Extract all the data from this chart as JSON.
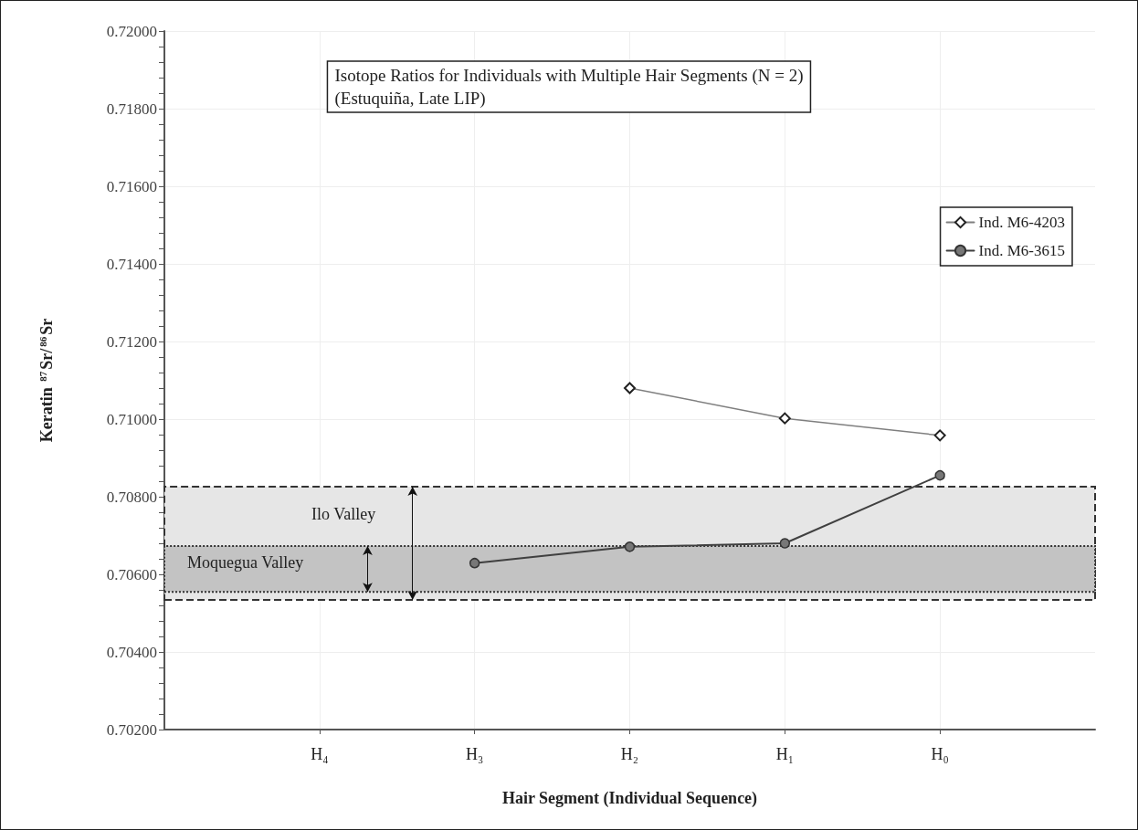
{
  "chart_data": {
    "type": "line",
    "title": "Isotope Ratios for Individuals with Multiple Hair Segments (N = 2)",
    "subtitle": "(Estuquiña, Late LIP)",
    "xlabel": "Hair Segment (Individual Sequence)",
    "ylabel": "Keratin $^{87}$Sr/$^{86}$Sr",
    "categories": [
      null,
      "H₄",
      "H₃",
      "H₂",
      "H₁",
      "H₀",
      null
    ],
    "series": [
      {
        "name": "Ind. M6-4203",
        "color": "#7f7f7f",
        "marker": "diamond",
        "values": [
          null,
          null,
          null,
          0.7108,
          0.71002,
          0.70958,
          null
        ]
      },
      {
        "name": "Ind. M6-3615",
        "color": "#404040",
        "marker": "circle",
        "values": [
          null,
          null,
          0.70629,
          0.70671,
          0.7068,
          0.70855,
          null
        ]
      }
    ],
    "ylim": [
      0.702,
      0.72
    ],
    "yticks": [
      {
        "value": 0.702,
        "label": "0.70200"
      },
      {
        "value": 0.7024,
        "label": null
      },
      {
        "value": 0.7028,
        "label": null
      },
      {
        "value": 0.7032,
        "label": null
      },
      {
        "value": 0.7036,
        "label": null
      },
      {
        "value": 0.704,
        "label": "0.70400"
      },
      {
        "value": 0.7044,
        "label": null
      },
      {
        "value": 0.7048,
        "label": null
      },
      {
        "value": 0.7052,
        "label": null
      },
      {
        "value": 0.7056,
        "label": null
      },
      {
        "value": 0.706,
        "label": "0.70600"
      },
      {
        "value": 0.7064,
        "label": null
      },
      {
        "value": 0.7068,
        "label": null
      },
      {
        "value": 0.7072,
        "label": null
      },
      {
        "value": 0.7076,
        "label": null
      },
      {
        "value": 0.708,
        "label": "0.70800"
      },
      {
        "value": 0.7084,
        "label": null
      },
      {
        "value": 0.7088,
        "label": null
      },
      {
        "value": 0.7092,
        "label": null
      },
      {
        "value": 0.7096,
        "label": null
      },
      {
        "value": 0.71,
        "label": "0.71000"
      },
      {
        "value": 0.7104,
        "label": null
      },
      {
        "value": 0.7108,
        "label": null
      },
      {
        "value": 0.7112,
        "label": null
      },
      {
        "value": 0.7116,
        "label": null
      },
      {
        "value": 0.712,
        "label": "0.71200"
      },
      {
        "value": 0.7124,
        "label": null
      },
      {
        "value": 0.7128,
        "label": null
      },
      {
        "value": 0.7132,
        "label": null
      },
      {
        "value": 0.7136,
        "label": null
      },
      {
        "value": 0.714,
        "label": "0.71400"
      },
      {
        "value": 0.7144,
        "label": null
      },
      {
        "value": 0.7148,
        "label": null
      },
      {
        "value": 0.7152,
        "label": null
      },
      {
        "value": 0.7156,
        "label": null
      },
      {
        "value": 0.716,
        "label": "0.71600"
      },
      {
        "value": 0.7164,
        "label": null
      },
      {
        "value": 0.7168,
        "label": null
      },
      {
        "value": 0.7172,
        "label": null
      },
      {
        "value": 0.7176,
        "label": null
      },
      {
        "value": 0.718,
        "label": "0.71800"
      },
      {
        "value": 0.7184,
        "label": null
      },
      {
        "value": 0.7188,
        "label": null
      },
      {
        "value": 0.7192,
        "label": null
      },
      {
        "value": 0.7196,
        "label": null
      },
      {
        "value": 0.72,
        "label": "0.72000"
      }
    ],
    "bands": [
      {
        "axis": "y",
        "from": 0.70534,
        "to": 0.70826,
        "label": "Ilo Valley",
        "color": "#e6e6e6"
      },
      {
        "axis": "y",
        "from": 0.70555,
        "to": 0.70673,
        "label": "Moquegua Valley",
        "color": "#c3c3c3"
      }
    ],
    "grid": true,
    "legend": "top right",
    "line_style": "solid"
  }
}
